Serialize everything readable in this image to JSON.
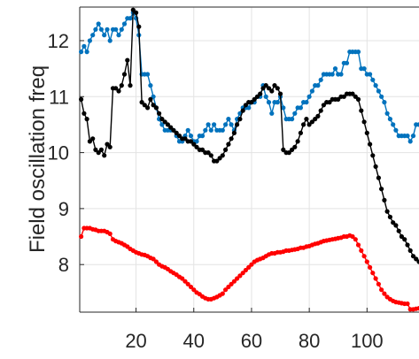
{
  "chart_data": {
    "type": "line",
    "title": "",
    "xlabel": "",
    "ylabel": "Field oscillation freq",
    "xlim": [
      0.5,
      118
    ],
    "ylim": [
      7.15,
      12.6
    ],
    "xticks": [
      20,
      40,
      60,
      80,
      100
    ],
    "yticks": [
      8,
      9,
      10,
      11,
      12
    ],
    "grid": true,
    "colors": {
      "blue_series": "#0072BD",
      "black_series": "#000000",
      "red_series": "#FF0000",
      "grid": "#e3e3e3",
      "axis": "#262626"
    },
    "series": [
      {
        "color": "#0072BD",
        "x": [
          1,
          2,
          3,
          4,
          5,
          6,
          7,
          8,
          9,
          10,
          11,
          12,
          13,
          14,
          15,
          16,
          17,
          18,
          19,
          20,
          21,
          22,
          23,
          24,
          25,
          26,
          27,
          28,
          29,
          30,
          31,
          32,
          33,
          34,
          35,
          36,
          37,
          38,
          39,
          40,
          41,
          42,
          43,
          44,
          45,
          46,
          47,
          48,
          49,
          50,
          51,
          52,
          53,
          54,
          55,
          56,
          57,
          58,
          59,
          60,
          61,
          62,
          63,
          64,
          65,
          66,
          67,
          68,
          69,
          70,
          71,
          72,
          73,
          74,
          75,
          76,
          77,
          78,
          79,
          80,
          81,
          82,
          83,
          84,
          85,
          86,
          87,
          88,
          89,
          90,
          91,
          92,
          93,
          94,
          95,
          96,
          97,
          98,
          99,
          100,
          101,
          102,
          103,
          104,
          105,
          106,
          107,
          108,
          109,
          110,
          111,
          112,
          113,
          114,
          115,
          116,
          117,
          118
        ],
        "y": [
          11.8,
          11.9,
          11.8,
          12.0,
          12.1,
          12.2,
          12.3,
          12.2,
          12.1,
          12.2,
          12.0,
          12.2,
          12.2,
          12.1,
          12.2,
          12.3,
          12.4,
          12.4,
          12.5,
          12.4,
          12.1,
          11.4,
          11.4,
          11.4,
          11.2,
          11.0,
          10.8,
          10.6,
          10.5,
          10.4,
          10.4,
          10.4,
          10.4,
          10.3,
          10.2,
          10.2,
          10.3,
          10.4,
          10.3,
          10.2,
          10.2,
          10.3,
          10.3,
          10.4,
          10.5,
          10.4,
          10.5,
          10.4,
          10.4,
          10.4,
          10.5,
          10.6,
          10.5,
          10.4,
          10.6,
          10.7,
          10.8,
          10.8,
          10.8,
          10.9,
          10.9,
          11.0,
          11.0,
          11.2,
          11.0,
          10.9,
          10.7,
          10.9,
          10.9,
          11.0,
          10.8,
          10.6,
          10.6,
          10.6,
          10.7,
          10.8,
          10.8,
          10.9,
          10.9,
          11.0,
          11.1,
          11.2,
          11.2,
          11.3,
          11.4,
          11.4,
          11.4,
          11.4,
          11.5,
          11.4,
          11.4,
          11.6,
          11.6,
          11.8,
          11.8,
          11.8,
          11.8,
          11.5,
          11.5,
          11.4,
          11.4,
          11.3,
          11.2,
          11.1,
          11.0,
          10.9,
          10.7,
          10.6,
          10.5,
          10.4,
          10.3,
          10.3,
          10.3,
          10.3,
          10.2,
          10.3,
          10.5,
          10.5
        ]
      },
      {
        "color": "#000000",
        "x": [
          1,
          2,
          3,
          4,
          5,
          6,
          7,
          8,
          9,
          10,
          11,
          12,
          13,
          14,
          15,
          16,
          17,
          18,
          19,
          20,
          21,
          22,
          23,
          24,
          25,
          26,
          27,
          28,
          29,
          30,
          31,
          32,
          33,
          34,
          35,
          36,
          37,
          38,
          39,
          40,
          41,
          42,
          43,
          44,
          45,
          46,
          47,
          48,
          49,
          50,
          51,
          52,
          53,
          54,
          55,
          56,
          57,
          58,
          59,
          60,
          61,
          62,
          63,
          64,
          65,
          66,
          67,
          68,
          69,
          70,
          71,
          72,
          73,
          74,
          75,
          76,
          77,
          78,
          79,
          80,
          81,
          82,
          83,
          84,
          85,
          86,
          87,
          88,
          89,
          90,
          91,
          92,
          93,
          94,
          95,
          96,
          97,
          98,
          99,
          100,
          101,
          102,
          103,
          104,
          105,
          106,
          107,
          108,
          109,
          110,
          111,
          112,
          113,
          114,
          115,
          116,
          117,
          118
        ],
        "y": [
          10.95,
          10.7,
          10.6,
          10.2,
          10.25,
          10.05,
          10.0,
          10.05,
          9.95,
          10.15,
          10.1,
          11.15,
          11.15,
          11.1,
          11.2,
          11.4,
          11.65,
          11.2,
          12.55,
          12.5,
          12.25,
          10.9,
          10.85,
          10.8,
          10.95,
          10.85,
          10.8,
          10.7,
          10.6,
          10.55,
          10.5,
          10.45,
          10.4,
          10.35,
          10.3,
          10.25,
          10.25,
          10.2,
          10.2,
          10.15,
          10.1,
          10.05,
          10.05,
          10.0,
          10.0,
          9.95,
          9.85,
          9.85,
          9.9,
          9.95,
          10.05,
          10.15,
          10.25,
          10.35,
          10.5,
          10.6,
          10.75,
          10.85,
          10.9,
          10.9,
          10.95,
          11.0,
          11.05,
          11.15,
          11.2,
          11.15,
          11.1,
          11.2,
          11.15,
          11.05,
          10.05,
          10.0,
          10.0,
          10.05,
          10.1,
          10.2,
          10.35,
          10.5,
          10.6,
          10.5,
          10.55,
          10.6,
          10.65,
          10.75,
          10.85,
          10.9,
          10.9,
          10.95,
          10.95,
          10.95,
          11.0,
          11.0,
          11.05,
          11.05,
          11.05,
          11.0,
          10.95,
          10.75,
          10.55,
          10.35,
          10.15,
          9.95,
          9.75,
          9.55,
          9.35,
          9.15,
          8.95,
          8.85,
          8.75,
          8.7,
          8.6,
          8.5,
          8.45,
          8.35,
          8.25,
          8.15,
          8.1,
          8.05
        ]
      },
      {
        "color": "#FF0000",
        "x": [
          1,
          2,
          3,
          4,
          5,
          6,
          7,
          8,
          9,
          10,
          11,
          12,
          13,
          14,
          15,
          16,
          17,
          18,
          19,
          20,
          21,
          22,
          23,
          24,
          25,
          26,
          27,
          28,
          29,
          30,
          31,
          32,
          33,
          34,
          35,
          36,
          37,
          38,
          39,
          40,
          41,
          42,
          43,
          44,
          45,
          46,
          47,
          48,
          49,
          50,
          51,
          52,
          53,
          54,
          55,
          56,
          57,
          58,
          59,
          60,
          61,
          62,
          63,
          64,
          65,
          66,
          67,
          68,
          69,
          70,
          71,
          72,
          73,
          74,
          75,
          76,
          77,
          78,
          79,
          80,
          81,
          82,
          83,
          84,
          85,
          86,
          87,
          88,
          89,
          90,
          91,
          92,
          93,
          94,
          95,
          96,
          97,
          98,
          99,
          100,
          101,
          102,
          103,
          104,
          105,
          106,
          107,
          108,
          109,
          110,
          111,
          112,
          113,
          114,
          115,
          116,
          117,
          118
        ],
        "y": [
          8.5,
          8.65,
          8.65,
          8.65,
          8.63,
          8.62,
          8.6,
          8.6,
          8.6,
          8.58,
          8.55,
          8.45,
          8.42,
          8.4,
          8.38,
          8.35,
          8.32,
          8.28,
          8.25,
          8.22,
          8.2,
          8.18,
          8.17,
          8.15,
          8.12,
          8.1,
          8.05,
          8.0,
          7.97,
          7.95,
          7.92,
          7.88,
          7.85,
          7.82,
          7.78,
          7.75,
          7.7,
          7.65,
          7.6,
          7.55,
          7.5,
          7.47,
          7.43,
          7.4,
          7.38,
          7.38,
          7.4,
          7.42,
          7.45,
          7.48,
          7.55,
          7.6,
          7.65,
          7.7,
          7.75,
          7.8,
          7.85,
          7.9,
          7.95,
          8.0,
          8.05,
          8.08,
          8.1,
          8.12,
          8.15,
          8.18,
          8.2,
          8.2,
          8.22,
          8.22,
          8.23,
          8.25,
          8.25,
          8.26,
          8.27,
          8.28,
          8.3,
          8.3,
          8.32,
          8.33,
          8.35,
          8.37,
          8.38,
          8.4,
          8.42,
          8.43,
          8.44,
          8.45,
          8.46,
          8.47,
          8.48,
          8.5,
          8.5,
          8.52,
          8.5,
          8.45,
          8.35,
          8.25,
          8.15,
          8.05,
          7.95,
          7.85,
          7.75,
          7.65,
          7.55,
          7.48,
          7.42,
          7.38,
          7.35,
          7.33,
          7.32,
          7.31,
          7.3,
          7.3,
          7.2,
          7.2,
          7.21,
          7.22
        ]
      }
    ]
  }
}
